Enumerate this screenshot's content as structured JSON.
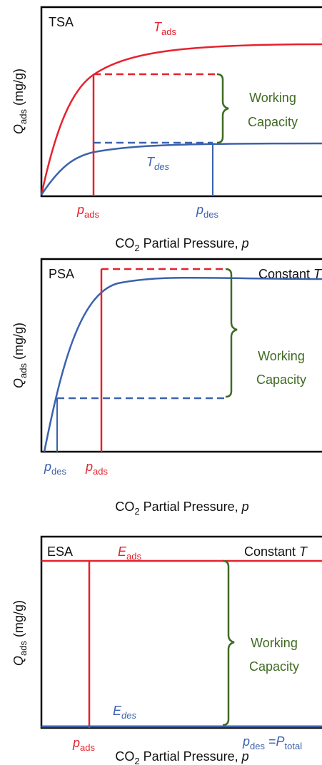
{
  "panels": [
    {
      "title": "TSA",
      "curve_ads": {
        "main": "T",
        "sub": "ads"
      },
      "curve_des": {
        "main": "T",
        "sub": "des"
      },
      "p_ads": {
        "main": "p",
        "sub": "ads"
      },
      "p_des": {
        "main": "p",
        "sub": "des"
      },
      "working_capacity": [
        "Working",
        "Capacity"
      ],
      "y_axis_label": {
        "main": "Q",
        "sub": "ads",
        "rest": " (mg/g)"
      },
      "x_axis_label": {
        "main": "CO",
        "sub": "2",
        "rest": " Partial Pressure, ",
        "var": "p"
      }
    },
    {
      "title": "PSA",
      "condition": {
        "text": "Constant ",
        "var": "T"
      },
      "p_des": {
        "main": "p",
        "sub": "des"
      },
      "p_ads": {
        "main": "p",
        "sub": "ads"
      },
      "working_capacity": [
        "Working",
        "Capacity"
      ],
      "y_axis_label": {
        "main": "Q",
        "sub": "ads",
        "rest": " (mg/g)"
      },
      "x_axis_label": {
        "main": "CO",
        "sub": "2",
        "rest": " Partial Pressure, ",
        "var": "p"
      }
    },
    {
      "title": "ESA",
      "curve_ads": {
        "main": "E",
        "sub": "ads"
      },
      "condition": {
        "text": "Constant ",
        "var": "T"
      },
      "curve_des": {
        "main": "E",
        "sub": "des"
      },
      "p_ads": {
        "main": "p",
        "sub": "ads"
      },
      "p_des": {
        "main": "p",
        "sub": "des",
        "rest": " =",
        "main2": "P",
        "sub2": "total"
      },
      "working_capacity": [
        "Working",
        "Capacity"
      ],
      "y_axis_label": {
        "main": "Q",
        "sub": "ads",
        "rest": " (mg/g)"
      },
      "x_axis_label": {
        "main": "CO",
        "sub": "2",
        "rest": " Partial Pressure, ",
        "var": "p"
      }
    }
  ]
}
